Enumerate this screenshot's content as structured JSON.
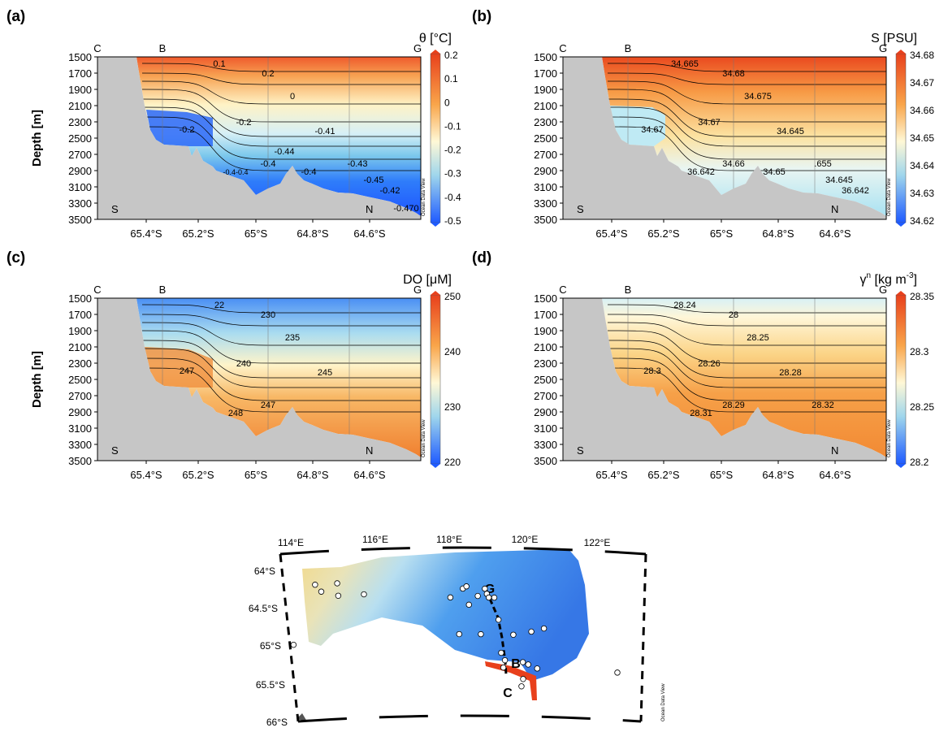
{
  "colors": {
    "cold": "#1f5bff",
    "mid": "#fff8d6",
    "warm": "#e8401c",
    "land": "#c6c6c6",
    "contour": "#000000",
    "section_line": "#000000",
    "shelf_red": "#e8401c"
  },
  "watermark": "Ocean Data View",
  "chart_data": [
    {
      "type": "heatmap",
      "panel_label": "(a)",
      "variable_label": "θ [°C]",
      "ylabel": "Depth [m]",
      "xlabel": "",
      "y_ticks": [
        "1500",
        "1700",
        "1900",
        "2100",
        "2300",
        "2500",
        "2700",
        "2900",
        "3100",
        "3300",
        "3500"
      ],
      "x_ticks": [
        "65.4°S",
        "65.2°S",
        "65°S",
        "64.8°S",
        "64.6°S"
      ],
      "ylim": [
        1500,
        3500
      ],
      "xlim": [
        65.52,
        64.48
      ],
      "x_reversed": true,
      "colorbar": {
        "ticks": [
          "0.2",
          "0.1",
          "0",
          "-0.1",
          "-0.2",
          "-0.3",
          "-0.4",
          "-0.5"
        ],
        "min": -0.5,
        "max": 0.2
      },
      "corner_labels": {
        "top_left": "C",
        "top_mid": "B",
        "top_right": "G",
        "bottom_left": "S",
        "bottom_right": "N"
      },
      "contour_labels": [
        "0.1",
        "0.2",
        "0",
        "-0.2",
        "-0.2",
        "-0.41",
        "-0.4",
        "-0.4-0.4",
        "-0.43",
        "-0.4",
        "-0.45",
        "-0.42",
        "-0.44",
        "-0.470"
      ]
    },
    {
      "type": "heatmap",
      "panel_label": "(b)",
      "variable_label": "S [PSU]",
      "ylabel": "",
      "xlabel": "",
      "y_ticks": [
        "1500",
        "1700",
        "1900",
        "2100",
        "2300",
        "2500",
        "2700",
        "2900",
        "3100",
        "3300",
        "3500"
      ],
      "x_ticks": [
        "65.4°S",
        "65.2°S",
        "65°S",
        "64.8°S",
        "64.6°S"
      ],
      "ylim": [
        1500,
        3500
      ],
      "xlim": [
        65.52,
        64.48
      ],
      "x_reversed": true,
      "colorbar": {
        "ticks": [
          "34.68",
          "34.67",
          "34.66",
          "34.65",
          "34.64",
          "34.63",
          "34.62"
        ],
        "min": 34.62,
        "max": 34.68
      },
      "corner_labels": {
        "top_left": "C",
        "top_mid": "B",
        "top_right": "G",
        "bottom_left": "S",
        "bottom_right": "N"
      },
      "contour_labels": [
        "34.665",
        "34.68",
        "34.675",
        "34.67",
        "34.67",
        "34.645",
        "34.66",
        "36.642",
        ".655",
        "34.65",
        "34.645",
        "36.642"
      ]
    },
    {
      "type": "heatmap",
      "panel_label": "(c)",
      "variable_label": "DO [μM]",
      "ylabel": "Depth [m]",
      "xlabel": "",
      "y_ticks": [
        "1500",
        "1700",
        "1900",
        "2100",
        "2300",
        "2500",
        "2700",
        "2900",
        "3100",
        "3300",
        "3500"
      ],
      "x_ticks": [
        "65.4°S",
        "65.2°S",
        "65°S",
        "64.8°S",
        "64.6°S"
      ],
      "ylim": [
        1500,
        3500
      ],
      "xlim": [
        65.52,
        64.48
      ],
      "x_reversed": true,
      "colorbar": {
        "ticks": [
          "250",
          "240",
          "230",
          "220"
        ],
        "min": 220,
        "max": 250
      },
      "corner_labels": {
        "top_left": "C",
        "top_mid": "B",
        "top_right": "G",
        "bottom_left": "S",
        "bottom_right": "N"
      },
      "contour_labels": [
        "22",
        "230",
        "235",
        "240",
        "247",
        "245",
        "247",
        "248"
      ]
    },
    {
      "type": "heatmap",
      "panel_label": "(d)",
      "variable_label_main": "γ",
      "variable_label_sup": "n",
      "variable_label_unit": " [kg m",
      "variable_label_unit_sup": "-3",
      "variable_label_close": "]",
      "ylabel": "",
      "xlabel": "",
      "y_ticks": [
        "1500",
        "1700",
        "1900",
        "2100",
        "2300",
        "2500",
        "2700",
        "2900",
        "3100",
        "3300",
        "3500"
      ],
      "x_ticks": [
        "65.4°S",
        "65.2°S",
        "65°S",
        "64.8°S",
        "64.6°S"
      ],
      "ylim": [
        1500,
        3500
      ],
      "xlim": [
        65.52,
        64.48
      ],
      "x_reversed": true,
      "colorbar": {
        "ticks": [
          "28.35",
          "28.3",
          "28.25",
          "28.2"
        ],
        "min": 28.2,
        "max": 28.35
      },
      "corner_labels": {
        "top_left": "C",
        "top_mid": "B",
        "top_right": "G",
        "bottom_left": "S",
        "bottom_right": "N"
      },
      "contour_labels": [
        "28.24",
        "28",
        "28.25",
        "28.26",
        "28.3",
        "28.28",
        "28.29",
        "28.31",
        "28.32"
      ]
    }
  ],
  "map": {
    "lon_ticks": [
      "114°E",
      "116°E",
      "118°E",
      "120°E",
      "122°E"
    ],
    "lat_ticks": [
      "64°S",
      "64.5°S",
      "65°S",
      "65.5°S",
      "66°S"
    ],
    "section_labels": {
      "g": "G",
      "b": "B",
      "c": "C"
    },
    "stations": [
      {
        "lon": 113.7,
        "lat": 65.05
      },
      {
        "lon": 114.45,
        "lat": 64.25
      },
      {
        "lon": 114.6,
        "lat": 64.35
      },
      {
        "lon": 115.05,
        "lat": 64.25
      },
      {
        "lon": 115.05,
        "lat": 64.42
      },
      {
        "lon": 115.75,
        "lat": 64.42
      },
      {
        "lon": 118.1,
        "lat": 64.5
      },
      {
        "lon": 118.45,
        "lat": 64.38
      },
      {
        "lon": 118.55,
        "lat": 64.35
      },
      {
        "lon": 118.6,
        "lat": 64.6
      },
      {
        "lon": 118.85,
        "lat": 64.48
      },
      {
        "lon": 119.05,
        "lat": 64.38
      },
      {
        "lon": 119.1,
        "lat": 64.45
      },
      {
        "lon": 119.15,
        "lat": 64.5
      },
      {
        "lon": 119.3,
        "lat": 64.5
      },
      {
        "lon": 119.4,
        "lat": 64.8
      },
      {
        "lon": 118.3,
        "lat": 65.0
      },
      {
        "lon": 118.9,
        "lat": 65.0
      },
      {
        "lon": 119.8,
        "lat": 65.0
      },
      {
        "lon": 120.3,
        "lat": 64.95
      },
      {
        "lon": 120.65,
        "lat": 64.9
      },
      {
        "lon": 119.45,
        "lat": 65.25
      },
      {
        "lon": 119.55,
        "lat": 65.35
      },
      {
        "lon": 119.5,
        "lat": 65.45
      },
      {
        "lon": 120.05,
        "lat": 65.37
      },
      {
        "lon": 120.2,
        "lat": 65.4
      },
      {
        "lon": 120.45,
        "lat": 65.45
      },
      {
        "lon": 120.05,
        "lat": 65.6
      },
      {
        "lon": 120.0,
        "lat": 65.7
      },
      {
        "lon": 122.7,
        "lat": 65.45
      }
    ]
  }
}
